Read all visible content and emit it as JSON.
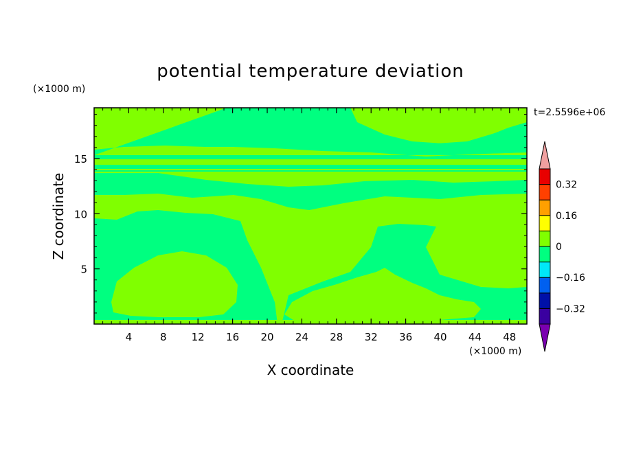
{
  "chart_data": {
    "type": "heatmap",
    "title": "potential temperature deviation",
    "xlabel": "X coordinate",
    "ylabel": "Z coordinate",
    "x_unit": "(×1000 m)",
    "y_unit": "(×1000 m)",
    "time_label": "t=2.5596e+06",
    "xlim": [
      0,
      50
    ],
    "ylim": [
      0,
      19.6
    ],
    "x_ticks": [
      4,
      8,
      12,
      16,
      20,
      24,
      28,
      32,
      36,
      40,
      44,
      48
    ],
    "y_ticks": [
      5,
      10,
      15
    ],
    "grid": false,
    "colorbar": {
      "levels": [
        {
          "color": "#7a00b0"
        },
        {
          "color": "#3a00a0"
        },
        {
          "color": "#0010a8"
        },
        {
          "color": "#0060f0"
        },
        {
          "color": "#00e8f8"
        },
        {
          "color": "#00ff80"
        },
        {
          "color": "#80ff00"
        },
        {
          "color": "#ffff00"
        },
        {
          "color": "#ffa000"
        },
        {
          "color": "#ff4000"
        },
        {
          "color": "#e80000"
        },
        {
          "color": "#f0a0a0"
        }
      ],
      "tick_labels": [
        "0.32",
        "0.16",
        "0",
        "−0.16",
        "−0.32"
      ]
    }
  }
}
